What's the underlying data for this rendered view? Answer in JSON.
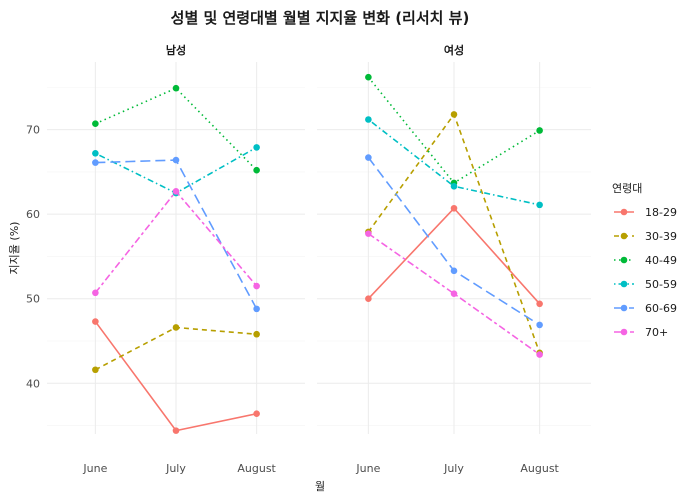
{
  "chart_data": {
    "type": "line",
    "title": "성별 및 연령대별 월별 지지율 변화 (리서치 뷰)",
    "xlabel": "월",
    "ylabel": "지지율 (%)",
    "categories": [
      "June",
      "July",
      "August"
    ],
    "ylim": [
      34,
      78
    ],
    "yticks": [
      40,
      50,
      60,
      70
    ],
    "grid": true,
    "legend": {
      "title": "연령대",
      "position": "right"
    },
    "panels": [
      {
        "name": "남성",
        "series": [
          {
            "name": "18-29",
            "values": [
              47.3,
              34.4,
              36.4
            ]
          },
          {
            "name": "30-39",
            "values": [
              41.6,
              46.6,
              45.8
            ]
          },
          {
            "name": "40-49",
            "values": [
              70.7,
              74.9,
              65.2
            ]
          },
          {
            "name": "50-59",
            "values": [
              67.2,
              62.5,
              67.9
            ]
          },
          {
            "name": "60-69",
            "values": [
              66.1,
              66.4,
              48.8
            ]
          },
          {
            "name": "70+",
            "values": [
              50.7,
              62.7,
              51.5
            ]
          }
        ]
      },
      {
        "name": "여성",
        "series": [
          {
            "name": "18-29",
            "values": [
              50.0,
              60.7,
              49.4
            ]
          },
          {
            "name": "30-39",
            "values": [
              57.9,
              71.8,
              43.6
            ]
          },
          {
            "name": "40-49",
            "values": [
              76.2,
              63.7,
              69.9
            ]
          },
          {
            "name": "50-59",
            "values": [
              71.2,
              63.3,
              61.1
            ]
          },
          {
            "name": "60-69",
            "values": [
              66.7,
              53.3,
              46.9
            ]
          },
          {
            "name": "70+",
            "values": [
              57.7,
              50.6,
              43.4
            ]
          }
        ]
      }
    ],
    "series_styles": [
      {
        "name": "18-29",
        "color": "#F8766D",
        "dash": "solid"
      },
      {
        "name": "30-39",
        "color": "#B79F00",
        "dash": "dashed"
      },
      {
        "name": "40-49",
        "color": "#00BA38",
        "dash": "dotted"
      },
      {
        "name": "50-59",
        "color": "#00BFC4",
        "dash": "dotdash"
      },
      {
        "name": "60-69",
        "color": "#619CFF",
        "dash": "longdash"
      },
      {
        "name": "70+",
        "color": "#F564E3",
        "dash": "twodash"
      }
    ]
  }
}
